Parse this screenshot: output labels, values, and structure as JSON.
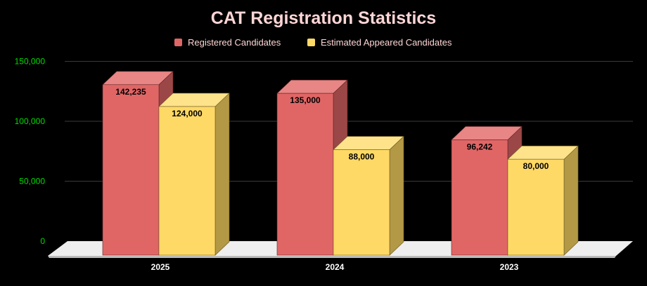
{
  "chart_data": {
    "type": "bar",
    "title": "CAT Registration Statistics",
    "categories": [
      "2025",
      "2024",
      "2023"
    ],
    "series": [
      {
        "name": "Registered Candidates",
        "values": [
          142235,
          135000,
          96242
        ],
        "labels": [
          "142,235",
          "135,000",
          "96,242"
        ]
      },
      {
        "name": "Estimated Appeared Candidates",
        "values": [
          124000,
          88000,
          80000
        ],
        "labels": [
          "124,000",
          "88,000",
          "80,000"
        ]
      }
    ],
    "y_ticks": [
      0,
      50000,
      100000,
      150000
    ],
    "y_tick_labels": [
      "0",
      "50,000",
      "100,000",
      "150,000"
    ],
    "ylim": [
      0,
      150000
    ],
    "xlabel": "",
    "ylabel": "",
    "grid": true,
    "three_d": true,
    "legend_position": "top"
  },
  "colors": {
    "background": "#000000",
    "title": "#FFD6D6",
    "legend_text": "#FFD6D6",
    "y_tick_text": "#00DD00",
    "x_tick_text": "#FFFFFF",
    "grid": "#3a3a3a",
    "floor_top": "#EEEEEE",
    "floor_edge": "#BBBBBB",
    "data_label": "#000000",
    "series": [
      {
        "front": "#E06666",
        "side": "#9C4747",
        "top": "#E88585",
        "stroke": "#5e2222"
      },
      {
        "front": "#FFD966",
        "side": "#B39845",
        "top": "#FFE38A",
        "stroke": "#6b5a20"
      }
    ]
  }
}
